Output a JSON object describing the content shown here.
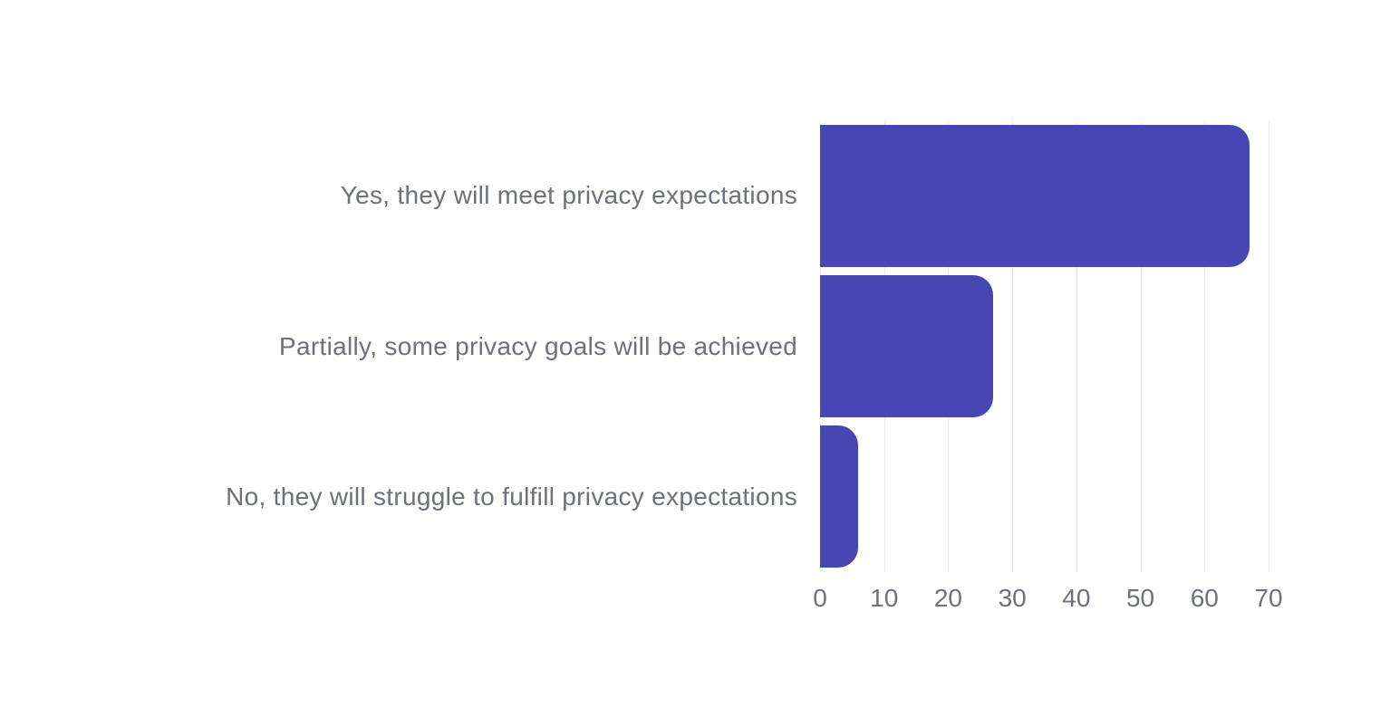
{
  "chart_data": {
    "type": "bar",
    "orientation": "horizontal",
    "title": "",
    "xlabel": "",
    "ylabel": "",
    "categories": [
      "Yes, they will meet privacy expectations",
      "Partially, some privacy goals will be achieved",
      "No, they will struggle to fulfill privacy expectations"
    ],
    "values": [
      67,
      27,
      6
    ],
    "xlim": [
      0,
      70
    ],
    "x_ticks": [
      0,
      10,
      20,
      30,
      40,
      50,
      60,
      70
    ],
    "grid": "vertical-only",
    "legend": "none",
    "colors": {
      "bar": "#4846b4",
      "text": "#6e707a",
      "gridline": "#ededed",
      "background": "#ffffff"
    }
  }
}
